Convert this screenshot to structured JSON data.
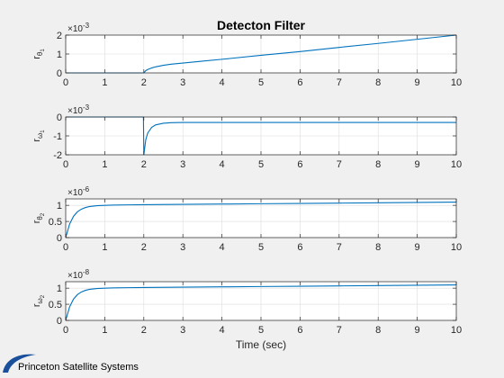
{
  "figure": {
    "title": "Detecton Filter",
    "xlabel": "Time (sec)"
  },
  "logo": {
    "text": "Princeton Satellite Systems",
    "accent": "#1a4f9c"
  },
  "style": {
    "line_color": "#0072bd",
    "axes_bg": "#ffffff",
    "fig_bg": "#f0f0f0",
    "grid_color": "#dcdcdc",
    "axis_color": "#262626"
  },
  "chart_data": [
    {
      "type": "line",
      "name": "r_theta1",
      "ylabel": {
        "main": "r",
        "sub": "θ",
        "subsub": "1"
      },
      "exponent": {
        "base": "×10",
        "power": "-3"
      },
      "xlim": [
        0,
        10
      ],
      "ylim": [
        0,
        2
      ],
      "xticks": [
        0,
        1,
        2,
        3,
        4,
        5,
        6,
        7,
        8,
        9,
        10
      ],
      "yticks": [
        0,
        1,
        2
      ],
      "grid": true,
      "x": [
        0,
        1.99,
        2.0,
        2.05,
        2.1,
        2.2,
        2.3,
        2.5,
        2.7,
        3.0,
        3.5,
        4,
        5,
        6,
        7,
        8,
        9,
        10
      ],
      "y": [
        0,
        0,
        0,
        0.12,
        0.18,
        0.26,
        0.32,
        0.4,
        0.46,
        0.52,
        0.62,
        0.72,
        0.93,
        1.13,
        1.35,
        1.56,
        1.78,
        2.0
      ]
    },
    {
      "type": "line",
      "name": "r_omega1",
      "ylabel": {
        "main": "r",
        "sub": "ω",
        "subsub": "1"
      },
      "exponent": {
        "base": "×10",
        "power": "-3"
      },
      "xlim": [
        0,
        10
      ],
      "ylim": [
        -2,
        0
      ],
      "xticks": [
        0,
        1,
        2,
        3,
        4,
        5,
        6,
        7,
        8,
        9,
        10
      ],
      "yticks": [
        -2,
        -1,
        0
      ],
      "grid": true,
      "x": [
        0,
        1.99,
        2.0,
        2.05,
        2.1,
        2.2,
        2.3,
        2.5,
        2.7,
        3.0,
        3.5,
        4,
        5,
        6,
        7,
        8,
        9,
        10
      ],
      "y": [
        0,
        0,
        -2.0,
        -1.2,
        -0.85,
        -0.55,
        -0.42,
        -0.33,
        -0.3,
        -0.29,
        -0.29,
        -0.29,
        -0.29,
        -0.29,
        -0.29,
        -0.29,
        -0.29,
        -0.29
      ]
    },
    {
      "type": "line",
      "name": "r_theta2",
      "ylabel": {
        "main": "r",
        "sub": "θ",
        "subsub": "2"
      },
      "exponent": {
        "base": "×10",
        "power": "-6"
      },
      "xlim": [
        0,
        10
      ],
      "ylim": [
        0,
        1.2
      ],
      "xticks": [
        0,
        1,
        2,
        3,
        4,
        5,
        6,
        7,
        8,
        9,
        10
      ],
      "yticks": [
        0,
        0.5,
        1
      ],
      "ytick_labels": [
        "0",
        "0.5",
        "1"
      ],
      "grid": true,
      "x": [
        0,
        0.1,
        0.2,
        0.3,
        0.4,
        0.5,
        0.6,
        0.8,
        1.0,
        1.3,
        1.6,
        2,
        3,
        4,
        5,
        6,
        7,
        8,
        9,
        10
      ],
      "y": [
        0,
        0.42,
        0.66,
        0.8,
        0.88,
        0.93,
        0.96,
        0.99,
        1.0,
        1.01,
        1.015,
        1.02,
        1.03,
        1.04,
        1.05,
        1.06,
        1.07,
        1.08,
        1.09,
        1.1
      ]
    },
    {
      "type": "line",
      "name": "r_omega2",
      "ylabel": {
        "main": "r",
        "sub": "ω",
        "subsub": "2"
      },
      "exponent": {
        "base": "×10",
        "power": "-8"
      },
      "xlim": [
        0,
        10
      ],
      "ylim": [
        0,
        1.2
      ],
      "xticks": [
        0,
        1,
        2,
        3,
        4,
        5,
        6,
        7,
        8,
        9,
        10
      ],
      "yticks": [
        0,
        0.5,
        1
      ],
      "ytick_labels": [
        "0",
        "0.5",
        "1"
      ],
      "grid": true,
      "x": [
        0,
        0.1,
        0.2,
        0.3,
        0.4,
        0.5,
        0.6,
        0.8,
        1.0,
        1.3,
        1.6,
        2,
        3,
        4,
        5,
        6,
        7,
        8,
        9,
        10
      ],
      "y": [
        0,
        0.42,
        0.66,
        0.8,
        0.88,
        0.93,
        0.96,
        0.99,
        1.0,
        1.01,
        1.015,
        1.02,
        1.03,
        1.04,
        1.05,
        1.06,
        1.07,
        1.08,
        1.09,
        1.1
      ]
    }
  ]
}
